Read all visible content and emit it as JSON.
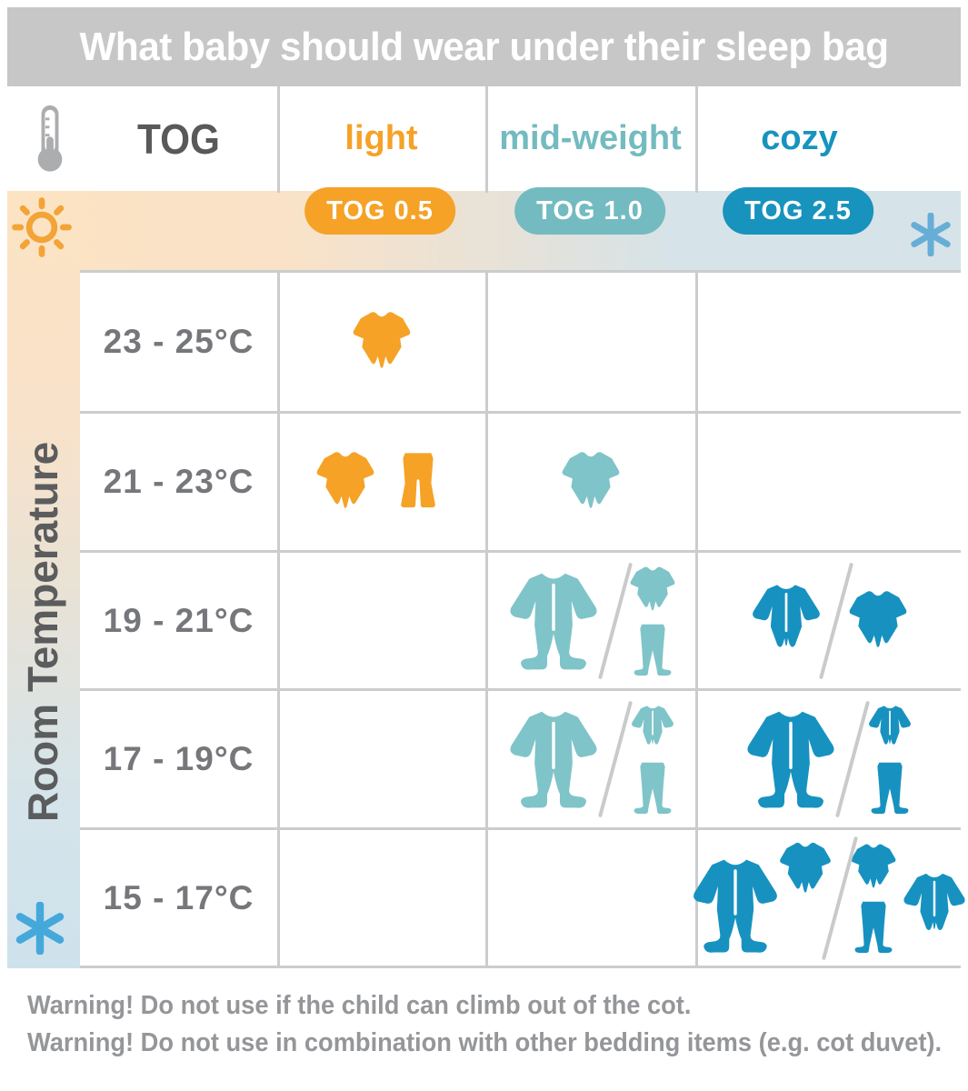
{
  "title": "What baby should wear under their sleep bag",
  "tog_column_label": "TOG",
  "row_axis_label": "Room Temperature",
  "warnings": [
    "Warning! Do not use if the child can climb out of the cot.",
    "Warning! Do not use in combination with other bedding items (e.g. cot duvet)."
  ],
  "icons": {
    "header_left": "thermometer-icon",
    "band_left": "sun-icon",
    "band_right": "snowflake-icon",
    "strip_bottom": "snowflake-icon"
  },
  "colors": {
    "title_bar": "#c7c7c8",
    "grid_line": "#cbcccd",
    "warm_band": "#fce3c3",
    "cool_band": "#d6e3e8",
    "cool_strip_bottom": "#cee2ec",
    "sun_orange": "#f2a436",
    "snowflake_blue": "#55abd9",
    "thermometer_gray": "#abadaf",
    "temperature_text": "#76777b",
    "axis_text": "#5b5c5e",
    "warning_text": "#949699"
  },
  "chart_data": {
    "type": "table",
    "title": "What baby should wear under their sleep bag",
    "row_header": "Room Temperature",
    "columns": [
      {
        "id": "light",
        "label": "light",
        "tog_rating": "TOG 0.5",
        "color": "#f5a227",
        "icon_color": "#f5a227"
      },
      {
        "id": "mid_weight",
        "label": "mid-weight",
        "tog_rating": "TOG 1.0",
        "color": "#73bbc0",
        "icon_color": "#7fc4c9"
      },
      {
        "id": "cozy",
        "label": "cozy",
        "tog_rating": "TOG 2.5",
        "color": "#1793be",
        "icon_color": "#1792c0"
      }
    ],
    "cell_semantics": "Each cell lists outfit options; options separated by a slash mean either/or; garments inside one group are worn together (stacked in the graphic).",
    "rows": [
      {
        "temperature": "23 - 25°C",
        "cells": {
          "light": [
            [
              [
                "bodysuit-short-sleeve"
              ]
            ]
          ],
          "mid_weight": [],
          "cozy": []
        }
      },
      {
        "temperature": "21 - 23°C",
        "cells": {
          "light": [
            [
              [
                "bodysuit-short-sleeve"
              ],
              [
                "pants"
              ]
            ]
          ],
          "mid_weight": [
            [
              [
                "bodysuit-short-sleeve"
              ]
            ]
          ],
          "cozy": []
        }
      },
      {
        "temperature": "19 - 21°C",
        "cells": {
          "light": [],
          "mid_weight": [
            [
              [
                "sleepsuit-footed"
              ]
            ],
            [
              [
                "bodysuit-short-sleeve",
                "pants-footed"
              ]
            ]
          ],
          "cozy": [
            [
              [
                "bodysuit-long-sleeve"
              ]
            ],
            [
              [
                "bodysuit-short-sleeve"
              ]
            ]
          ]
        }
      },
      {
        "temperature": "17 - 19°C",
        "cells": {
          "light": [],
          "mid_weight": [
            [
              [
                "sleepsuit-footed"
              ]
            ],
            [
              [
                "bodysuit-long-sleeve",
                "pants-footed"
              ]
            ]
          ],
          "cozy": [
            [
              [
                "sleepsuit-footed"
              ]
            ],
            [
              [
                "bodysuit-long-sleeve",
                "pants-footed"
              ]
            ]
          ]
        }
      },
      {
        "temperature": "15 - 17°C",
        "cells": {
          "light": [],
          "mid_weight": [],
          "cozy": [
            [
              [
                "sleepsuit-footed"
              ],
              [
                "bodysuit-short-sleeve"
              ]
            ],
            [
              [
                "bodysuit-short-sleeve",
                "pants-footed"
              ],
              [
                "bodysuit-long-sleeve"
              ]
            ]
          ]
        }
      }
    ]
  }
}
